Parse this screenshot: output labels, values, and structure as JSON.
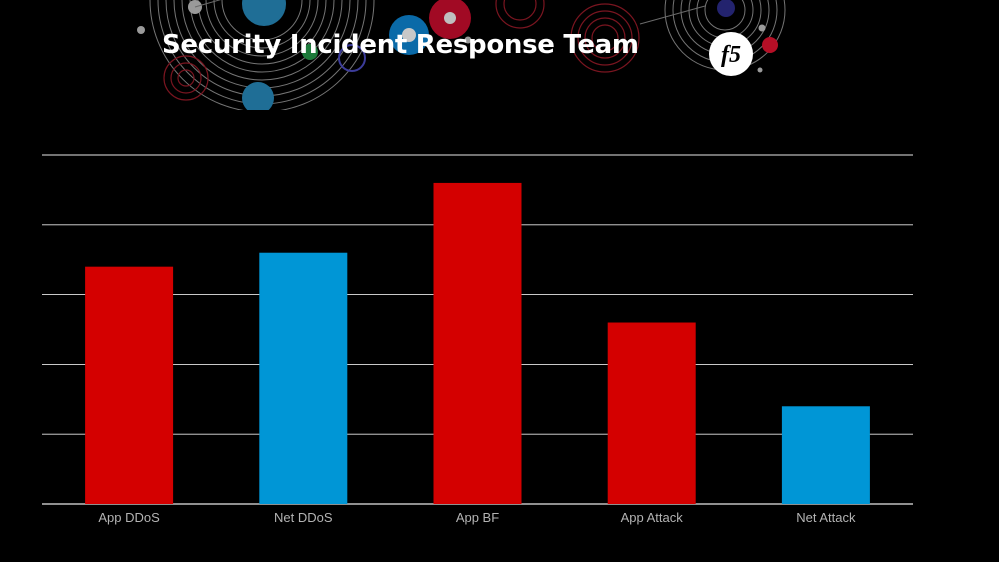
{
  "slide": {
    "title": "Security Incident Response Team",
    "logo_text": "f5"
  },
  "colors": {
    "background": "#000000",
    "red": "#d40000",
    "blue": "#0096d6",
    "grid": "#e6e6e6",
    "label": "#b3b3b3"
  },
  "chart_data": {
    "type": "bar",
    "title": "",
    "xlabel": "",
    "ylabel": "",
    "categories": [
      "App DDoS",
      "Net DDoS",
      "App BF",
      "App Attack",
      "Net Attack"
    ],
    "values": [
      3.4,
      3.6,
      4.6,
      2.6,
      1.4
    ],
    "bar_colors": [
      "#d40000",
      "#0096d6",
      "#d40000",
      "#d40000",
      "#0096d6"
    ],
    "ylim": [
      0,
      5
    ],
    "grid": true,
    "y_tick_labels_visible": false,
    "legend": "none"
  }
}
